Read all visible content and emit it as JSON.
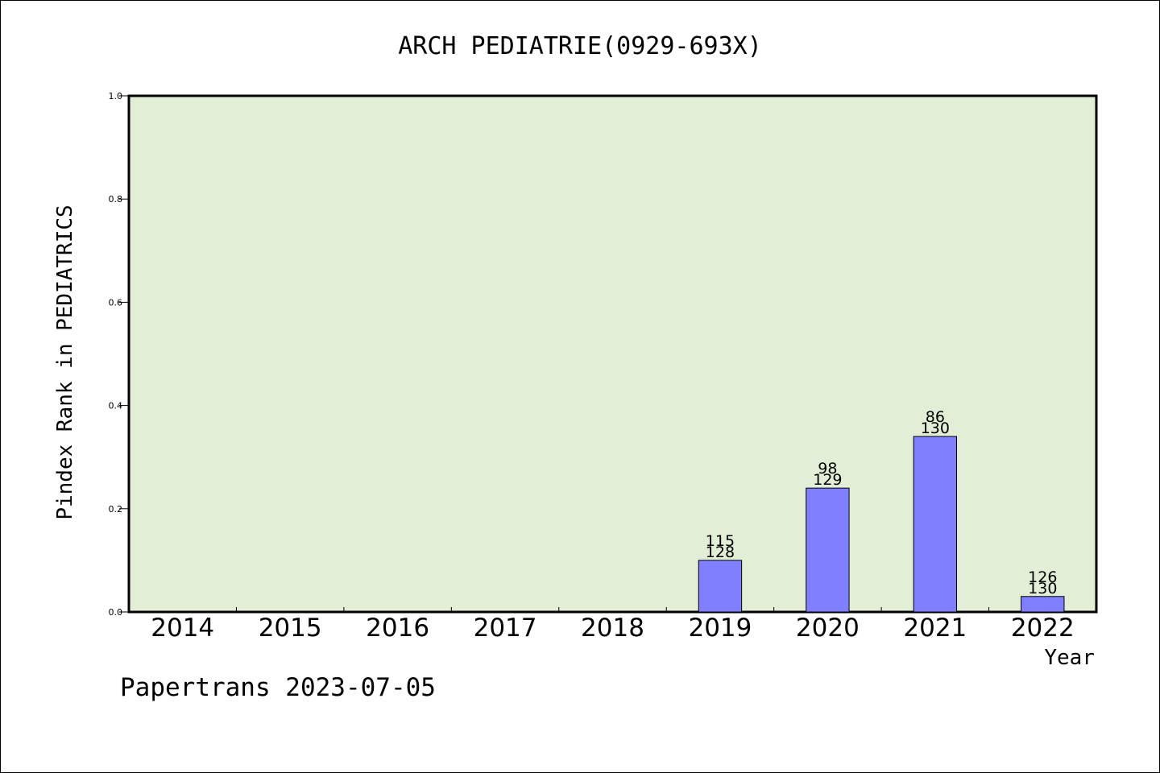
{
  "chart_data": {
    "type": "bar",
    "title": "ARCH PEDIATRIE(0929-693X)",
    "ylabel": "Pindex Rank in PEDIATRICS",
    "xlabel": "Year",
    "categories": [
      "2014",
      "2015",
      "2016",
      "2017",
      "2018",
      "2019",
      "2020",
      "2021",
      "2022"
    ],
    "values": [
      null,
      null,
      null,
      null,
      null,
      0.1,
      0.24,
      0.34,
      0.03
    ],
    "label_top": [
      "",
      "",
      "",
      "",
      "",
      "115",
      "98",
      "86",
      "126"
    ],
    "label_bottom": [
      "",
      "",
      "",
      "",
      "",
      "128",
      "129",
      "130",
      "130"
    ],
    "yticks": [
      "0.0",
      "0.2",
      "0.4",
      "0.6",
      "0.8",
      "1.0"
    ],
    "ylim": [
      0,
      1
    ],
    "grid": false,
    "footer": "Papertrans 2023-07-05",
    "plot_bg_color": "#e2efd6",
    "bar_color": "#8080ff",
    "bar_edge_color": "#000000"
  }
}
